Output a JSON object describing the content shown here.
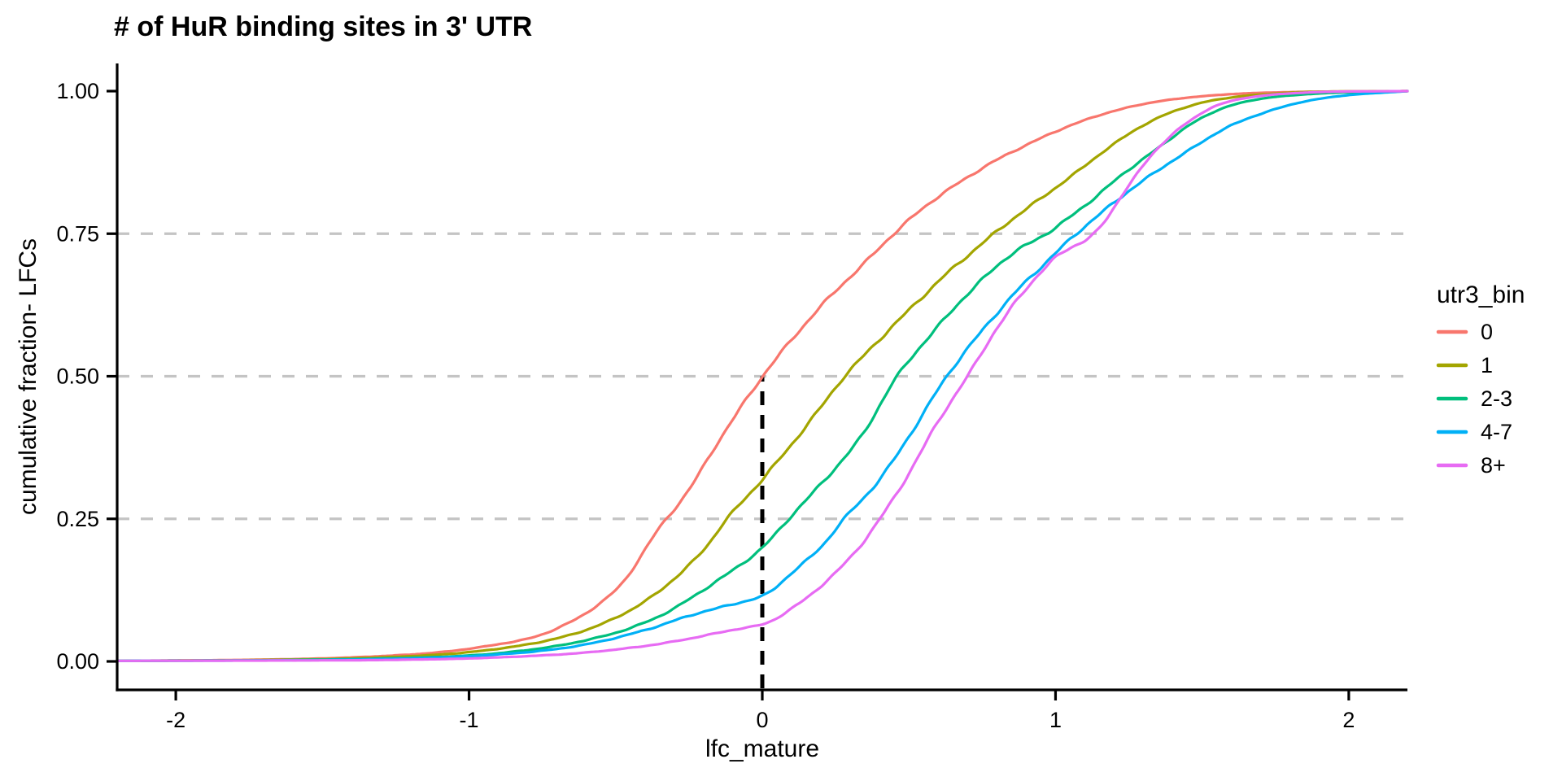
{
  "chart_data": {
    "type": "line",
    "subtype": "ecdf",
    "title": "# of HuR binding sites in 3' UTR",
    "xlabel": "lfc_mature",
    "ylabel": "cumulative fraction- LFCs",
    "xlim": [
      -2.2,
      2.2
    ],
    "ylim": [
      0,
      1
    ],
    "grid": "dashed horizontal at 0.25 / 0.50 / 0.75",
    "x_ticks": [
      {
        "value": -2,
        "label": "-2"
      },
      {
        "value": -1,
        "label": "-1"
      },
      {
        "value": 0,
        "label": "0"
      },
      {
        "value": 1,
        "label": "1"
      },
      {
        "value": 2,
        "label": "2"
      }
    ],
    "y_ticks": [
      {
        "value": 0.0,
        "label": "0.00"
      },
      {
        "value": 0.25,
        "label": "0.25"
      },
      {
        "value": 0.5,
        "label": "0.50"
      },
      {
        "value": 0.75,
        "label": "0.75"
      },
      {
        "value": 1.0,
        "label": "1.00"
      }
    ],
    "gridline_color": "#C4C4C4",
    "gridline_y_values": [
      0.25,
      0.5,
      0.75
    ],
    "reference_line": {
      "x": 0,
      "y_from": 0,
      "y_to": 0.5,
      "style": "dashed",
      "color": "#000000"
    },
    "legend": {
      "title": "utr3_bin",
      "position": "right"
    },
    "series": [
      {
        "name": "0",
        "color": "#F8766D",
        "points": [
          [
            -2.2,
            0.001
          ],
          [
            -1.9,
            0.002
          ],
          [
            -1.6,
            0.004
          ],
          [
            -1.35,
            0.008
          ],
          [
            -1.15,
            0.014
          ],
          [
            -1.0,
            0.022
          ],
          [
            -0.9,
            0.03
          ],
          [
            -0.8,
            0.04
          ],
          [
            -0.65,
            0.07
          ],
          [
            -0.5,
            0.125
          ],
          [
            -0.35,
            0.235
          ],
          [
            -0.25,
            0.3
          ],
          [
            -0.15,
            0.385
          ],
          [
            0,
            0.5
          ],
          [
            0.12,
            0.575
          ],
          [
            0.25,
            0.65
          ],
          [
            0.35,
            0.7
          ],
          [
            0.45,
            0.75
          ],
          [
            0.6,
            0.815
          ],
          [
            0.75,
            0.865
          ],
          [
            0.9,
            0.905
          ],
          [
            1.05,
            0.94
          ],
          [
            1.2,
            0.965
          ],
          [
            1.35,
            0.982
          ],
          [
            1.5,
            0.991
          ],
          [
            1.7,
            0.997
          ],
          [
            1.9,
            0.999
          ],
          [
            2.2,
            1.0
          ]
        ]
      },
      {
        "name": "1",
        "color": "#A3A500",
        "points": [
          [
            -2.2,
            0.001
          ],
          [
            -1.8,
            0.002
          ],
          [
            -1.5,
            0.004
          ],
          [
            -1.25,
            0.008
          ],
          [
            -1.05,
            0.014
          ],
          [
            -0.9,
            0.022
          ],
          [
            -0.75,
            0.035
          ],
          [
            -0.6,
            0.055
          ],
          [
            -0.45,
            0.09
          ],
          [
            -0.3,
            0.145
          ],
          [
            -0.2,
            0.195
          ],
          [
            -0.12,
            0.25
          ],
          [
            0,
            0.32
          ],
          [
            0.1,
            0.38
          ],
          [
            0.2,
            0.445
          ],
          [
            0.28,
            0.5
          ],
          [
            0.4,
            0.565
          ],
          [
            0.52,
            0.625
          ],
          [
            0.65,
            0.69
          ],
          [
            0.79,
            0.75
          ],
          [
            0.92,
            0.8
          ],
          [
            1.05,
            0.85
          ],
          [
            1.18,
            0.9
          ],
          [
            1.3,
            0.94
          ],
          [
            1.42,
            0.968
          ],
          [
            1.55,
            0.985
          ],
          [
            1.7,
            0.994
          ],
          [
            1.9,
            0.999
          ],
          [
            2.2,
            1.0
          ]
        ]
      },
      {
        "name": "2-3",
        "color": "#00BF7D",
        "points": [
          [
            -2.2,
            0.001
          ],
          [
            -1.7,
            0.002
          ],
          [
            -1.4,
            0.004
          ],
          [
            -1.15,
            0.007
          ],
          [
            -0.95,
            0.012
          ],
          [
            -0.8,
            0.02
          ],
          [
            -0.65,
            0.032
          ],
          [
            -0.5,
            0.05
          ],
          [
            -0.35,
            0.08
          ],
          [
            -0.2,
            0.125
          ],
          [
            -0.1,
            0.16
          ],
          [
            0,
            0.2
          ],
          [
            0.09,
            0.25
          ],
          [
            0.2,
            0.31
          ],
          [
            0.33,
            0.39
          ],
          [
            0.46,
            0.5
          ],
          [
            0.58,
            0.575
          ],
          [
            0.7,
            0.645
          ],
          [
            0.84,
            0.71
          ],
          [
            0.97,
            0.75
          ],
          [
            1.1,
            0.8
          ],
          [
            1.22,
            0.85
          ],
          [
            1.35,
            0.9
          ],
          [
            1.47,
            0.945
          ],
          [
            1.6,
            0.975
          ],
          [
            1.75,
            0.99
          ],
          [
            1.95,
            0.997
          ],
          [
            2.2,
            1.0
          ]
        ]
      },
      {
        "name": "4-7",
        "color": "#00B0F6",
        "points": [
          [
            -2.2,
            0.001
          ],
          [
            -1.6,
            0.002
          ],
          [
            -1.3,
            0.004
          ],
          [
            -1.05,
            0.008
          ],
          [
            -0.85,
            0.014
          ],
          [
            -0.7,
            0.022
          ],
          [
            -0.55,
            0.035
          ],
          [
            -0.4,
            0.055
          ],
          [
            -0.25,
            0.08
          ],
          [
            -0.1,
            0.1
          ],
          [
            0,
            0.115
          ],
          [
            0.1,
            0.155
          ],
          [
            0.2,
            0.2
          ],
          [
            0.28,
            0.25
          ],
          [
            0.4,
            0.32
          ],
          [
            0.52,
            0.41
          ],
          [
            0.63,
            0.5
          ],
          [
            0.74,
            0.575
          ],
          [
            0.86,
            0.645
          ],
          [
            0.97,
            0.7
          ],
          [
            1.07,
            0.75
          ],
          [
            1.2,
            0.805
          ],
          [
            1.32,
            0.85
          ],
          [
            1.45,
            0.895
          ],
          [
            1.58,
            0.935
          ],
          [
            1.7,
            0.96
          ],
          [
            1.85,
            0.982
          ],
          [
            2.0,
            0.993
          ],
          [
            2.2,
            1.0
          ]
        ]
      },
      {
        "name": "8+",
        "color": "#E76BF3",
        "points": [
          [
            -2.2,
            0.001
          ],
          [
            -1.4,
            0.002
          ],
          [
            -1.1,
            0.004
          ],
          [
            -0.9,
            0.007
          ],
          [
            -0.7,
            0.012
          ],
          [
            -0.55,
            0.018
          ],
          [
            -0.4,
            0.027
          ],
          [
            -0.25,
            0.04
          ],
          [
            -0.1,
            0.055
          ],
          [
            0,
            0.065
          ],
          [
            0.12,
            0.1
          ],
          [
            0.24,
            0.15
          ],
          [
            0.33,
            0.2
          ],
          [
            0.4,
            0.25
          ],
          [
            0.5,
            0.33
          ],
          [
            0.6,
            0.42
          ],
          [
            0.7,
            0.5
          ],
          [
            0.8,
            0.585
          ],
          [
            0.92,
            0.665
          ],
          [
            1.02,
            0.715
          ],
          [
            1.13,
            0.75
          ],
          [
            1.25,
            0.835
          ],
          [
            1.35,
            0.9
          ],
          [
            1.45,
            0.945
          ],
          [
            1.55,
            0.975
          ],
          [
            1.65,
            0.988
          ],
          [
            1.8,
            0.996
          ],
          [
            1.95,
            0.999
          ],
          [
            2.2,
            1.0
          ]
        ]
      }
    ]
  }
}
